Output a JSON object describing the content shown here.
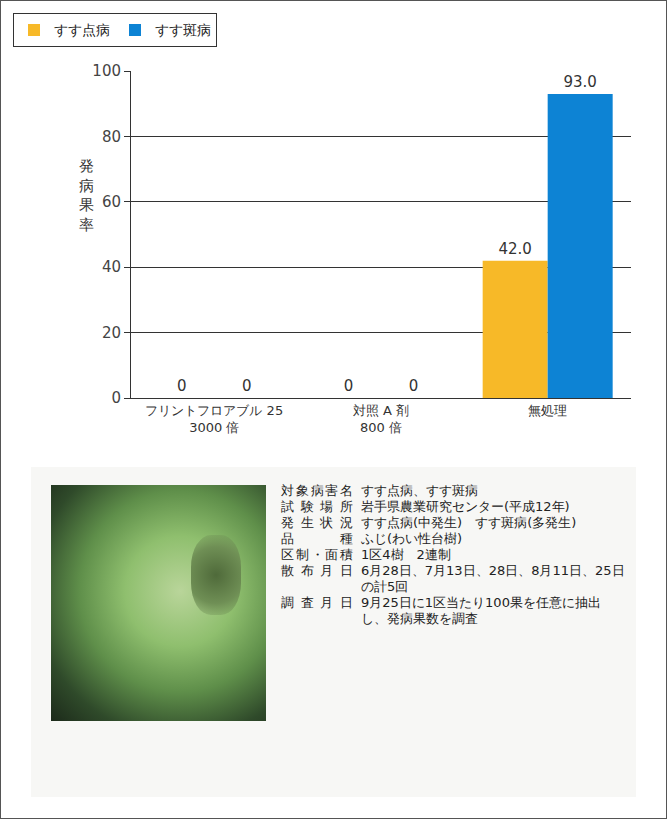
{
  "chart_data": {
    "type": "bar",
    "categories": [
      "フリントフロアブル 25\n3000 倍",
      "対照 A 剤\n800 倍",
      "無処理"
    ],
    "series": [
      {
        "name": "すす点病",
        "color": "#f7b928",
        "values": [
          0,
          0,
          42.0
        ],
        "value_labels": [
          "0",
          "0",
          "42.0"
        ]
      },
      {
        "name": "すす斑病",
        "color": "#0d83d4",
        "values": [
          0,
          0,
          93.0
        ],
        "value_labels": [
          "0",
          "0",
          "93.0"
        ]
      }
    ],
    "y_label": "発病果率",
    "ylim": [
      0,
      100
    ],
    "yticks": [
      0,
      20,
      40,
      60,
      80,
      100
    ],
    "grid": true,
    "data_labels": true,
    "legend": "top-left"
  },
  "info": {
    "rows": [
      [
        "対象病害名",
        "すす点病、すす斑病"
      ],
      [
        "試験場所",
        "岩手県農業研究センター(平成12年)"
      ],
      [
        "発生状況",
        "すす点病(中発生)　すす斑病(多発生)"
      ],
      [
        "品種",
        "ふじ(わい性台樹)"
      ],
      [
        "区制・面積",
        "1区4樹　2連制"
      ],
      [
        "散布月日",
        "6月28日、7月13日、28日、8月11日、25日の計5回"
      ],
      [
        "調査月日",
        "9月25日に1区当たり100果を任意に抽出し、発病果数を調査"
      ]
    ]
  }
}
